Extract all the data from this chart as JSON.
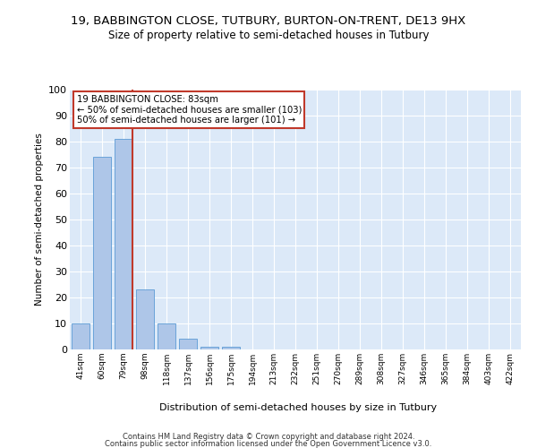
{
  "title": "19, BABBINGTON CLOSE, TUTBURY, BURTON-ON-TRENT, DE13 9HX",
  "subtitle": "Size of property relative to semi-detached houses in Tutbury",
  "xlabel": "Distribution of semi-detached houses by size in Tutbury",
  "ylabel": "Number of semi-detached properties",
  "categories": [
    "41sqm",
    "60sqm",
    "79sqm",
    "98sqm",
    "118sqm",
    "137sqm",
    "156sqm",
    "175sqm",
    "194sqm",
    "213sqm",
    "232sqm",
    "251sqm",
    "270sqm",
    "289sqm",
    "308sqm",
    "327sqm",
    "346sqm",
    "365sqm",
    "384sqm",
    "403sqm",
    "422sqm"
  ],
  "bar_heights": [
    10,
    74,
    81,
    23,
    10,
    4,
    1,
    1,
    0,
    0,
    0,
    0,
    0,
    0,
    0,
    0,
    0,
    0,
    0,
    0,
    0
  ],
  "bar_color": "#aec6e8",
  "bar_edge_color": "#5b9bd5",
  "ylim": [
    0,
    100
  ],
  "yticks": [
    0,
    10,
    20,
    30,
    40,
    50,
    60,
    70,
    80,
    90,
    100
  ],
  "property_bin_index": 2,
  "red_line_color": "#c0392b",
  "annotation_text_line1": "19 BABBINGTON CLOSE: 83sqm",
  "annotation_text_line2": "← 50% of semi-detached houses are smaller (103)",
  "annotation_text_line3": "50% of semi-detached houses are larger (101) →",
  "annotation_box_color": "#c0392b",
  "background_color": "#dce9f8",
  "grid_color": "#ffffff",
  "footer_line1": "Contains HM Land Registry data © Crown copyright and database right 2024.",
  "footer_line2": "Contains public sector information licensed under the Open Government Licence v3.0."
}
